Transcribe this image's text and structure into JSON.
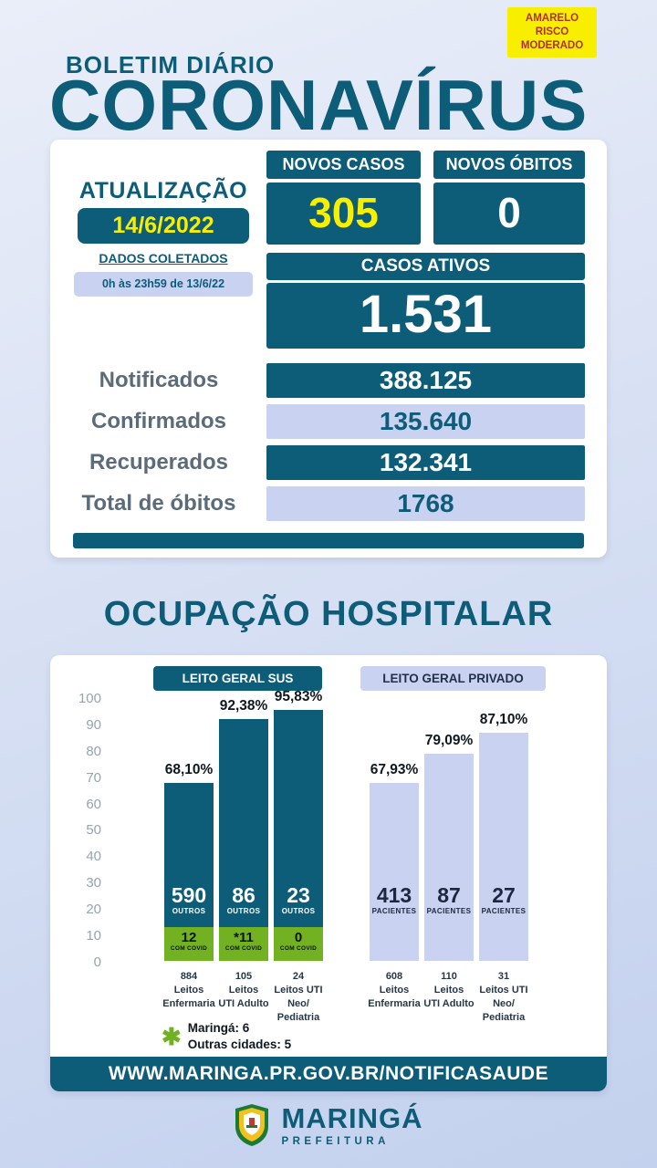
{
  "colors": {
    "teal": "#0d5c78",
    "yellow": "#f7ee00",
    "green": "#72b121",
    "periwinkle": "#c9d2f1"
  },
  "risk_badge": {
    "text": "AMARELO\nRISCO\nMODERADO"
  },
  "header": {
    "kicker": "BOLETIM DIÁRIO",
    "title": "CORONAVÍRUS"
  },
  "update": {
    "label": "ATUALIZAÇÃO",
    "date": "14/6/2022",
    "collected_label": "DADOS COLETADOS",
    "collected_period": "0h às 23h59 de 13/6/22"
  },
  "stats": {
    "new_cases": {
      "label": "NOVOS CASOS",
      "value": "305"
    },
    "new_deaths": {
      "label": "NOVOS ÓBITOS",
      "value": "0"
    },
    "active_cases": {
      "label": "CASOS ATIVOS",
      "value": "1.531"
    },
    "rows": [
      {
        "label": "Notificados",
        "value": "388.125"
      },
      {
        "label": "Confirmados",
        "value": "135.640"
      },
      {
        "label": "Recuperados",
        "value": "132.341"
      },
      {
        "label": "Total de óbitos",
        "value": "1768"
      }
    ]
  },
  "hospital": {
    "title": "OCUPAÇÃO HOSPITALAR"
  },
  "chart_data": {
    "type": "bar",
    "title": "OCUPAÇÃO HOSPITALAR",
    "ylabel": "",
    "xlabel": "",
    "ylim": [
      0,
      100
    ],
    "grid": false,
    "yticks_desc": [
      "100",
      "90",
      "80",
      "70",
      "60",
      "50",
      "40",
      "30",
      "20",
      "10",
      "0"
    ],
    "groups": [
      {
        "label": "LEITO GERAL SUS",
        "bar_color": "#0d5c78",
        "bars": [
          {
            "beds_label": "884\nLeitos\nEnfermaria",
            "occupancy_pct": 68.1,
            "pct_label": "68,10%",
            "others": "590",
            "others_caption": "OUTROS",
            "covid": "12",
            "covid_caption": "COM COVID"
          },
          {
            "beds_label": "105\nLeitos\nUTI Adulto",
            "occupancy_pct": 92.38,
            "pct_label": "92,38%",
            "others": "86",
            "others_caption": "OUTROS",
            "covid": "*11",
            "covid_caption": "COM COVID"
          },
          {
            "beds_label": "24\nLeitos UTI\nNeo/\nPediatria",
            "occupancy_pct": 95.83,
            "pct_label": "95,83%",
            "others": "23",
            "others_caption": "OUTROS",
            "covid": "0",
            "covid_caption": "COM COVID"
          }
        ]
      },
      {
        "label": "LEITO GERAL PRIVADO",
        "bar_color": "#c9d2f1",
        "bars": [
          {
            "beds_label": "608\nLeitos\nEnfermaria",
            "occupancy_pct": 67.93,
            "pct_label": "67,93%",
            "patients": "413",
            "patients_caption": "PACIENTES"
          },
          {
            "beds_label": "110\nLeitos\nUTI Adulto",
            "occupancy_pct": 79.09,
            "pct_label": "79,09%",
            "patients": "87",
            "patients_caption": "PACIENTES"
          },
          {
            "beds_label": "31\nLeitos UTI\nNeo/\nPediatria",
            "occupancy_pct": 87.1,
            "pct_label": "87,10%",
            "patients": "27",
            "patients_caption": "PACIENTES"
          }
        ]
      }
    ],
    "footnote": {
      "symbol": "✱",
      "lines": [
        "Maringá: 6",
        "Outras cidades: 5"
      ]
    }
  },
  "footer": {
    "url": "WWW.MARINGA.PR.GOV.BR/NOTIFICASAUDE",
    "org_name": "MARINGÁ",
    "org_subtitle": "PREFEITURA"
  }
}
